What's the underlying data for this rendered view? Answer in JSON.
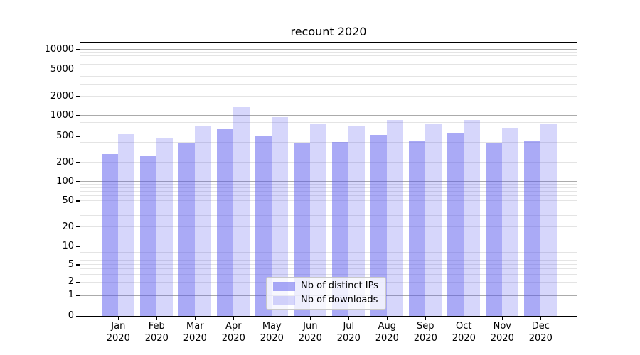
{
  "figure": {
    "background": "#ffffff",
    "axis_color": "#000000",
    "grid_major_color": "#ababab",
    "grid_minor_color": "#e4e4e4"
  },
  "chart_data": {
    "type": "bar",
    "title": "recount 2020",
    "categories": [
      "Jan",
      "Feb",
      "Mar",
      "Apr",
      "May",
      "Jun",
      "Jul",
      "Aug",
      "Sep",
      "Oct",
      "Nov",
      "Dec"
    ],
    "category_year": "2020",
    "series": [
      {
        "name": "Nb of distinct IPs",
        "color": "rgba(85,85,238,0.5)",
        "values": [
          270,
          250,
          400,
          630,
          500,
          385,
          410,
          520,
          430,
          560,
          390,
          420
        ]
      },
      {
        "name": "Nb of downloads",
        "color": "rgba(85,85,238,0.24)",
        "values": [
          530,
          470,
          720,
          1340,
          950,
          770,
          720,
          870,
          760,
          860,
          660,
          770
        ]
      }
    ],
    "xlabel": "",
    "ylabel": "",
    "yscale": "symlog",
    "yticks": [
      0,
      1,
      2,
      5,
      10,
      20,
      50,
      100,
      200,
      500,
      1000,
      2000,
      5000,
      10000
    ],
    "ylim": [
      0,
      12000
    ],
    "grid": true,
    "legend_position": "lower center inside axes"
  }
}
